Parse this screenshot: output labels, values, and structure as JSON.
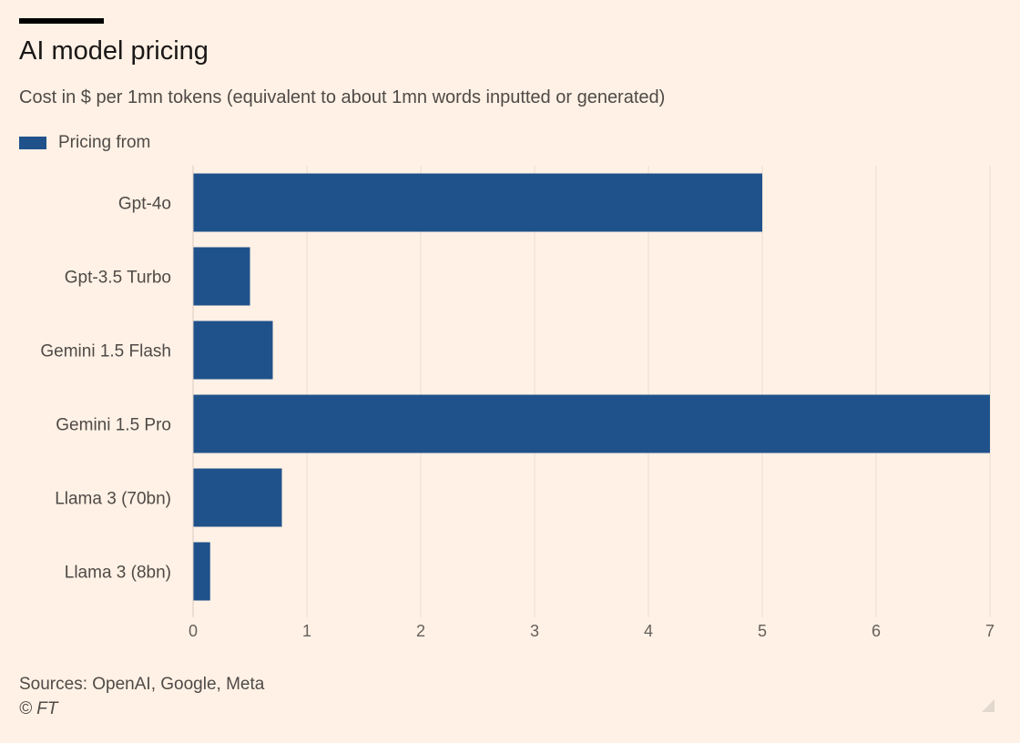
{
  "header": {
    "title": "AI model pricing",
    "subtitle": "Cost in $ per 1mn tokens (equivalent to about 1mn words inputted or generated)"
  },
  "legend": {
    "label": "Pricing from"
  },
  "footer": {
    "sources": "Sources: OpenAI, Google, Meta",
    "copyright": "© FT"
  },
  "colors": {
    "bar": "#1f528a",
    "grid": "#e8ddd3",
    "background": "#fff1e5"
  },
  "icons": {
    "corner": "resize-corner-icon"
  },
  "chart_data": {
    "type": "bar",
    "orientation": "horizontal",
    "title": "AI model pricing",
    "subtitle": "Cost in $ per 1mn tokens (equivalent to about 1mn words inputted or generated)",
    "categories": [
      "Gpt-4o",
      "Gpt-3.5 Turbo",
      "Gemini 1.5 Flash",
      "Gemini 1.5 Pro",
      "Llama 3 (70bn)",
      "Llama 3 (8bn)"
    ],
    "series": [
      {
        "name": "Pricing from",
        "values": [
          5,
          0.5,
          0.7,
          7,
          0.78,
          0.15
        ]
      }
    ],
    "xlim": [
      0,
      7
    ],
    "xticks": [
      0,
      1,
      2,
      3,
      4,
      5,
      6,
      7
    ],
    "grid": true,
    "legend_position": "top-left"
  }
}
